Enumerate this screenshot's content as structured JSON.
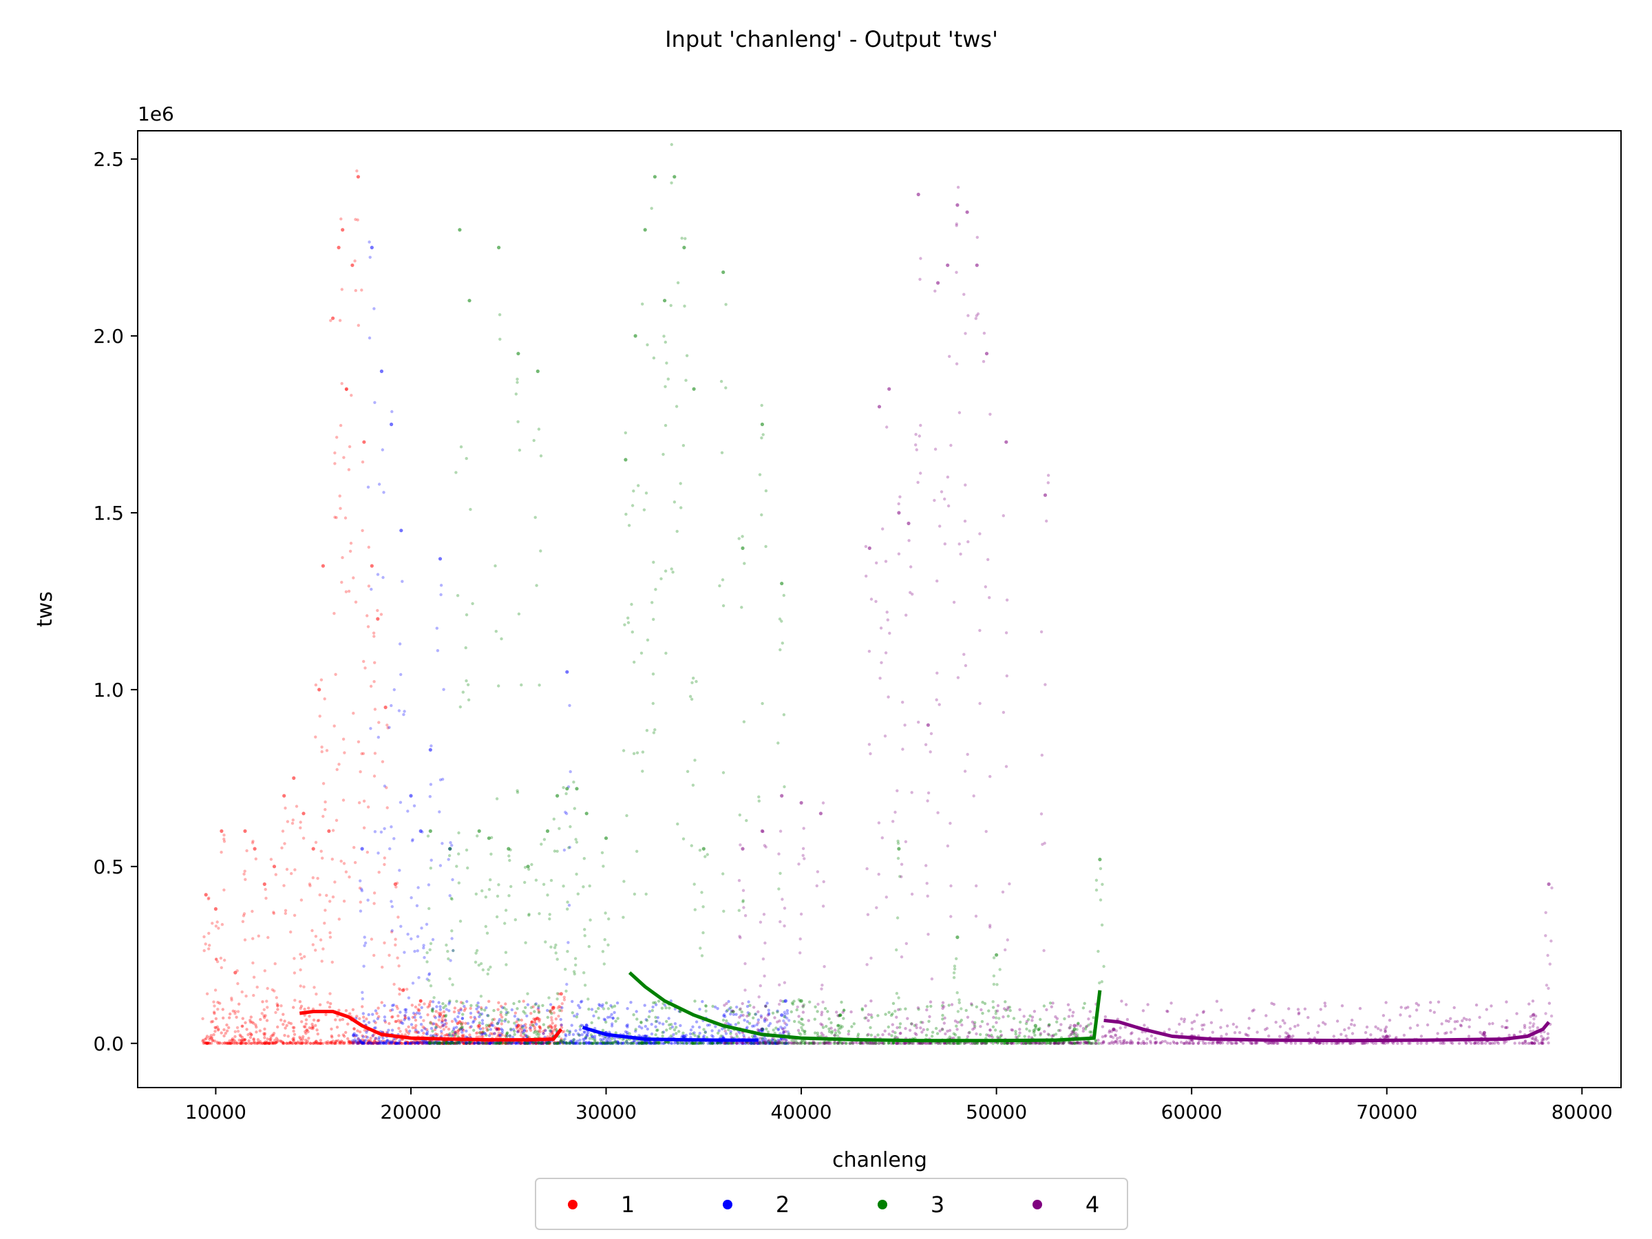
{
  "chart_data": {
    "type": "scatter",
    "title": "Input 'chanleng' - Output 'tws'",
    "xlabel": "chanleng",
    "ylabel": "tws",
    "y_offset_label": "1e6",
    "xlim": [
      6000,
      82000
    ],
    "ylim": [
      -0.125,
      2.58
    ],
    "y_scale_factor": 1000000,
    "x_ticks": [
      10000,
      20000,
      30000,
      40000,
      50000,
      60000,
      70000,
      80000
    ],
    "x_tick_labels": [
      "10000",
      "20000",
      "30000",
      "40000",
      "50000",
      "60000",
      "70000",
      "80000"
    ],
    "y_ticks": [
      0.0,
      0.5,
      1.0,
      1.5,
      2.0,
      2.5
    ],
    "y_tick_labels": [
      "0.0",
      "0.5",
      "1.0",
      "1.5",
      "2.0",
      "2.5"
    ],
    "grid": false,
    "legend_position": "bottom-center, below plot",
    "series": [
      {
        "name": "1",
        "color": "#ff0000",
        "x_range": [
          9300,
          27800
        ],
        "x": [
          9500,
          10000,
          10300,
          11000,
          11500,
          12000,
          12500,
          13000,
          13500,
          14000,
          14500,
          15000,
          15300,
          15500,
          15800,
          16000,
          16300,
          16500,
          16700,
          17000,
          17300,
          17600,
          18000,
          18300,
          18700,
          19200,
          19600,
          20500,
          21500,
          22500,
          23500,
          24500,
          25500,
          26500,
          27300,
          27700
        ],
        "y": [
          0.42,
          0.38,
          0.6,
          0.2,
          0.6,
          0.55,
          0.45,
          0.5,
          0.7,
          0.75,
          0.65,
          0.55,
          1.0,
          1.35,
          0.6,
          2.05,
          2.25,
          2.3,
          1.85,
          2.2,
          2.45,
          1.7,
          1.35,
          1.2,
          0.95,
          0.45,
          0.15,
          0.12,
          0.08,
          0.06,
          0.05,
          0.04,
          0.05,
          0.07,
          0.1,
          0.14
        ],
        "trend_x": [
          14300,
          15000,
          16000,
          16800,
          17500,
          18500,
          20000,
          22000,
          24000,
          26000,
          27300,
          27700
        ],
        "trend_y": [
          0.085,
          0.09,
          0.09,
          0.075,
          0.05,
          0.025,
          0.015,
          0.012,
          0.01,
          0.01,
          0.012,
          0.04
        ]
      },
      {
        "name": "2",
        "color": "#0000ff",
        "x_range": [
          17000,
          39300
        ],
        "x": [
          17500,
          18000,
          18500,
          19000,
          19500,
          20000,
          20500,
          21000,
          21500,
          22000,
          28000,
          29000,
          30000,
          32000,
          34000,
          36000,
          38000,
          39000,
          39200
        ],
        "y": [
          0.55,
          2.25,
          1.9,
          1.75,
          1.45,
          0.7,
          0.6,
          0.83,
          1.37,
          0.55,
          1.05,
          0.05,
          0.03,
          0.02,
          0.02,
          0.015,
          0.04,
          0.08,
          0.12
        ],
        "trend_x": [
          28800,
          30000,
          32000,
          34000,
          36000,
          37800
        ],
        "trend_y": [
          0.045,
          0.025,
          0.012,
          0.01,
          0.009,
          0.009
        ]
      },
      {
        "name": "3",
        "color": "#008000",
        "x_range": [
          20800,
          55400
        ],
        "x": [
          21000,
          22000,
          22500,
          23000,
          23500,
          24000,
          24500,
          25000,
          25500,
          26000,
          26500,
          27000,
          27500,
          28000,
          28500,
          29000,
          30000,
          31000,
          31500,
          32000,
          32500,
          33000,
          33500,
          34000,
          34500,
          35000,
          36000,
          37000,
          38000,
          39000,
          40000,
          42000,
          45000,
          48000,
          50000,
          52000,
          54000,
          55300
        ],
        "y": [
          0.6,
          0.55,
          2.3,
          2.1,
          0.6,
          0.58,
          2.25,
          0.55,
          1.95,
          0.5,
          1.9,
          0.6,
          0.7,
          0.72,
          0.72,
          0.65,
          0.58,
          1.65,
          2.0,
          2.3,
          2.45,
          2.1,
          2.45,
          2.25,
          1.85,
          0.55,
          2.18,
          1.4,
          1.75,
          1.3,
          0.12,
          0.08,
          0.55,
          0.3,
          0.25,
          0.05,
          0.04,
          0.52
        ],
        "trend_x": [
          31200,
          32000,
          33000,
          34500,
          36000,
          38000,
          40000,
          43000,
          46000,
          50000,
          53000,
          55000,
          55300
        ],
        "trend_y": [
          0.2,
          0.16,
          0.12,
          0.08,
          0.05,
          0.025,
          0.015,
          0.01,
          0.008,
          0.008,
          0.009,
          0.015,
          0.15
        ]
      },
      {
        "name": "4",
        "color": "#800080",
        "x_range": [
          36000,
          78400
        ],
        "x": [
          37000,
          38000,
          39000,
          40000,
          41000,
          43500,
          44000,
          44500,
          45000,
          45500,
          46000,
          46500,
          47000,
          47500,
          48000,
          48500,
          49000,
          49500,
          50500,
          52500,
          54000,
          56000,
          60000,
          65000,
          70000,
          75000,
          77500,
          78300
        ],
        "y": [
          0.55,
          0.6,
          0.7,
          0.68,
          0.65,
          1.4,
          1.8,
          1.85,
          1.5,
          1.47,
          2.4,
          0.9,
          2.15,
          2.2,
          2.37,
          2.35,
          2.2,
          1.95,
          1.7,
          1.55,
          0.05,
          0.04,
          0.02,
          0.02,
          0.02,
          0.03,
          0.08,
          0.45
        ],
        "trend_x": [
          55500,
          56300,
          57500,
          59000,
          61000,
          64000,
          68000,
          72000,
          76000,
          77200,
          78000,
          78300
        ],
        "trend_y": [
          0.065,
          0.06,
          0.04,
          0.02,
          0.012,
          0.009,
          0.008,
          0.009,
          0.012,
          0.02,
          0.04,
          0.06
        ]
      }
    ]
  }
}
